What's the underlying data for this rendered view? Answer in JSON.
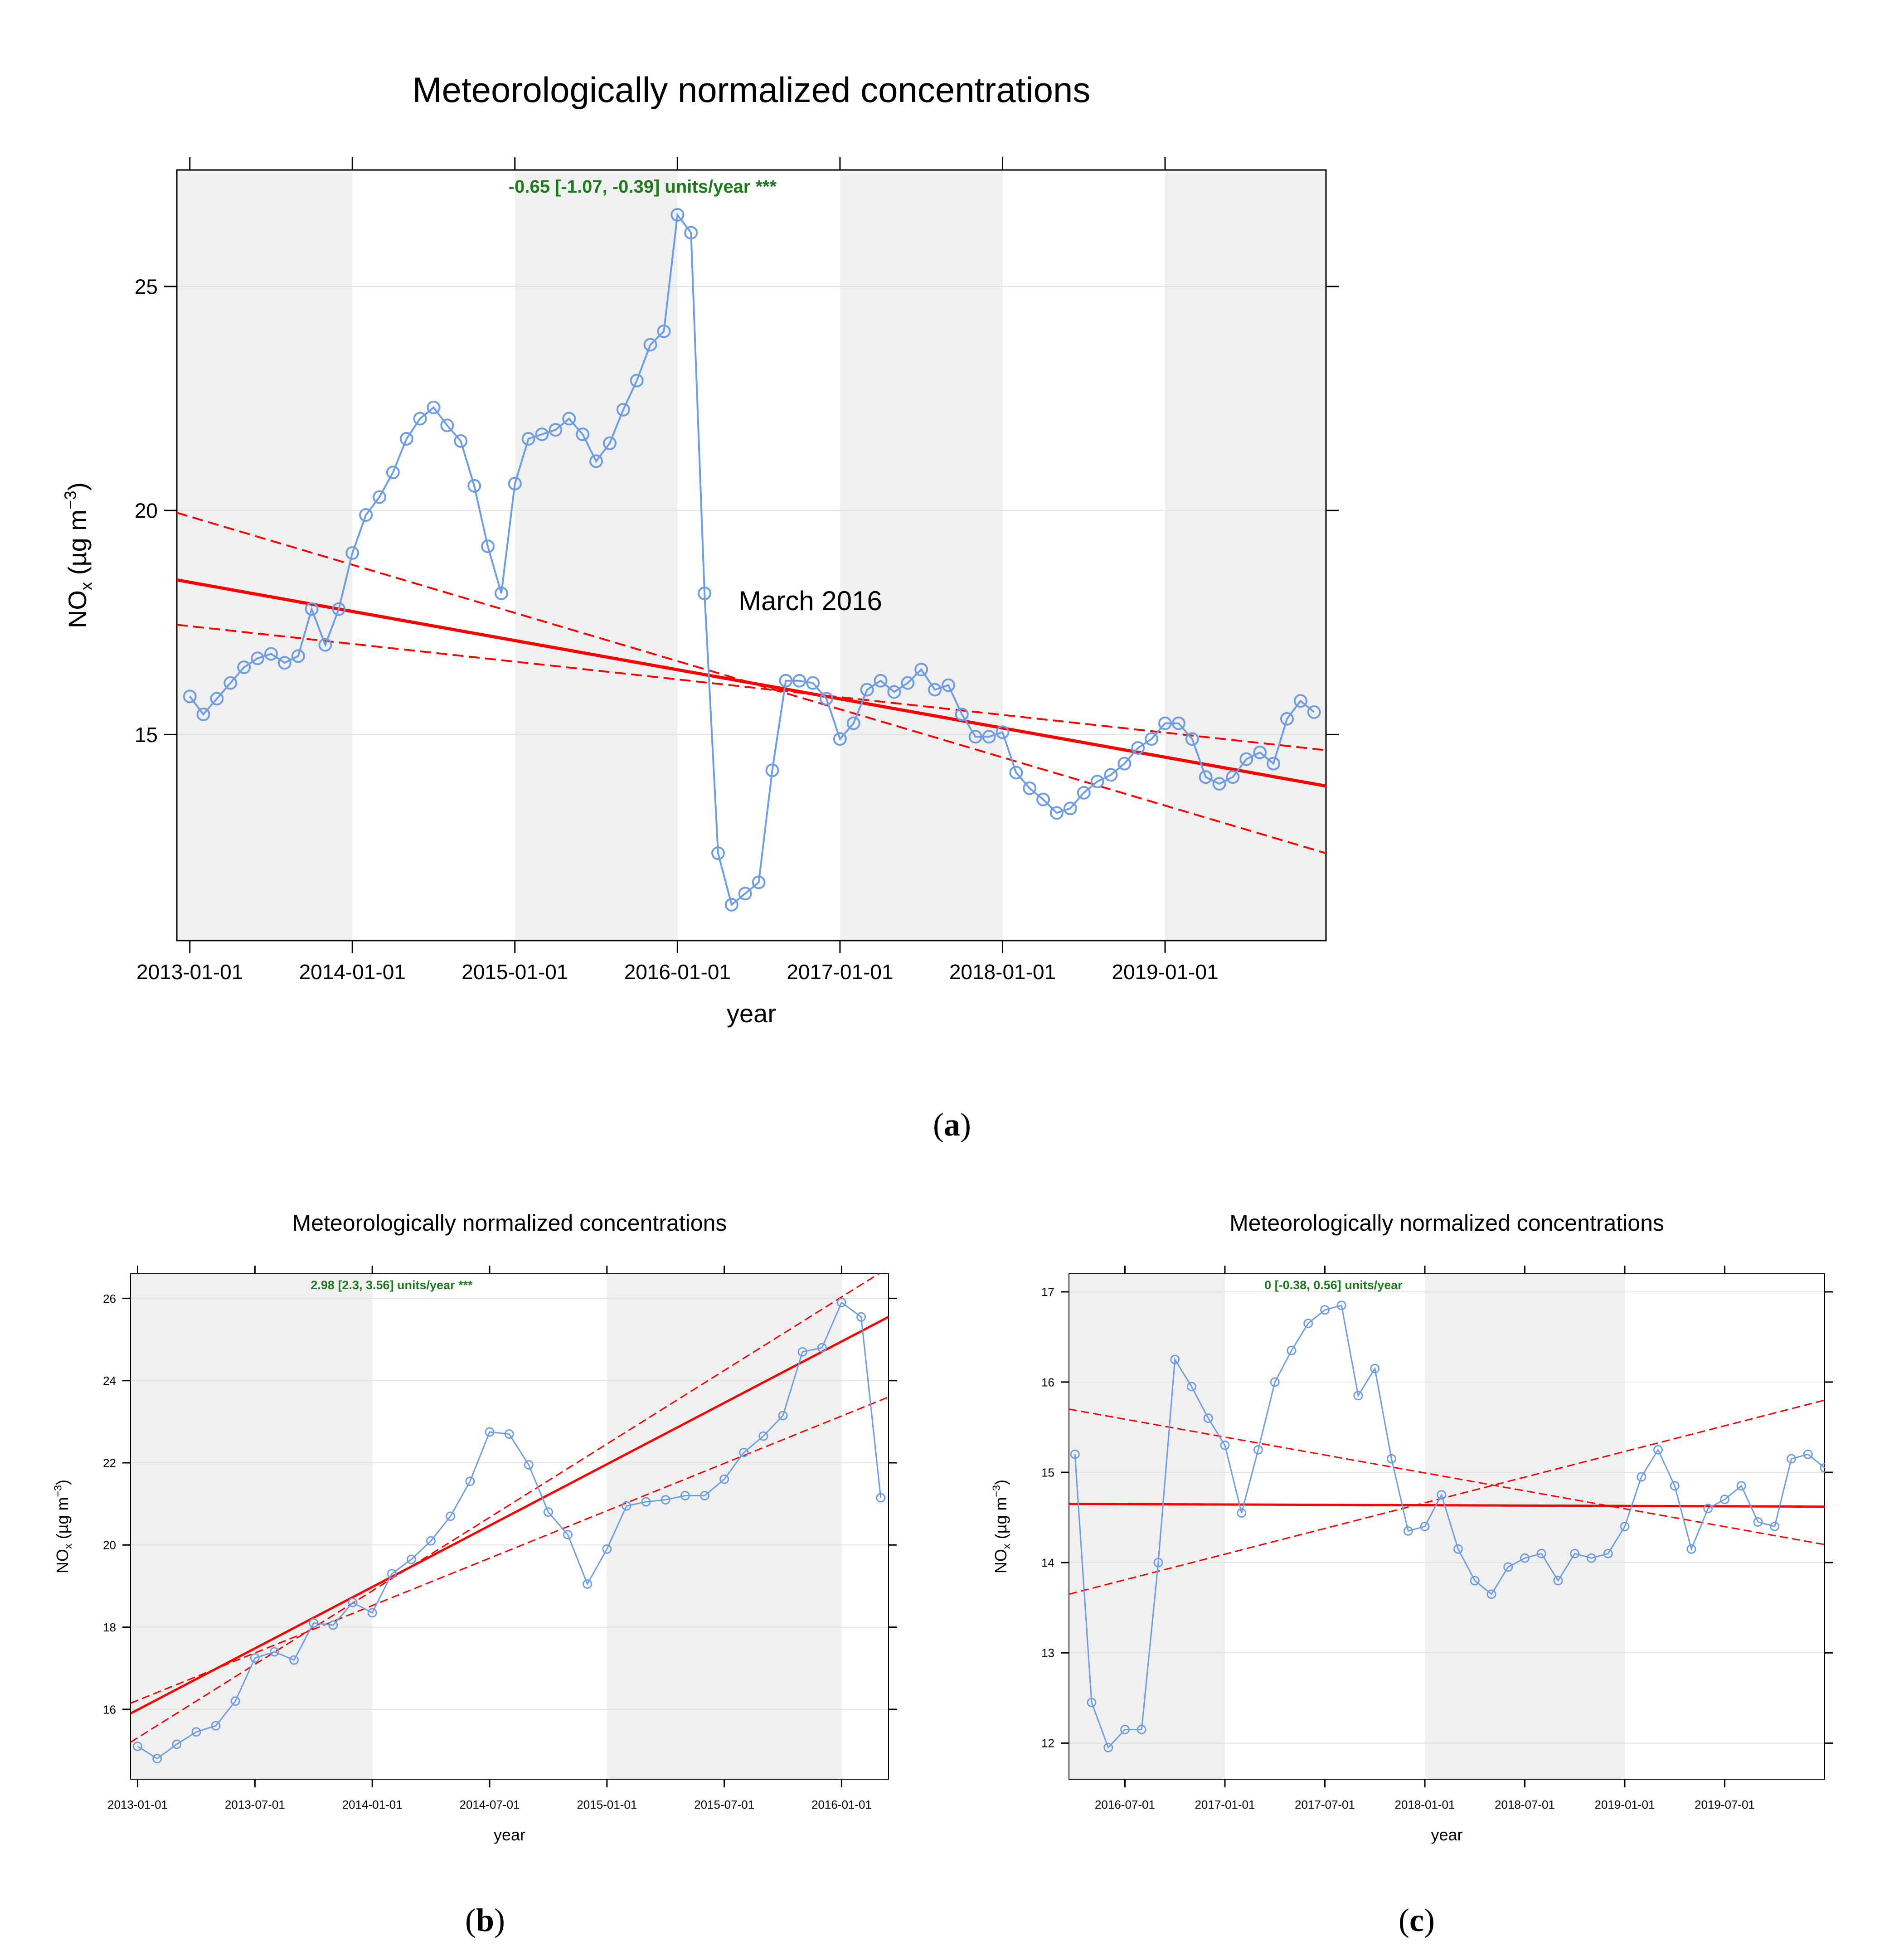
{
  "chart_data": [
    {
      "id": "a",
      "type": "line",
      "panel_label": "a",
      "title": "Meteorologically normalized concentrations",
      "xlabel": "year",
      "ylabel": "NO",
      "ylabel_sub": "x",
      "ylabel_unit": " (µg m",
      "ylabel_exp": "−3",
      "ylabel_close": ")",
      "trend_text": "-0.65 [-1.07, -0.39] units/year ***",
      "annotation": {
        "text": "March 2016",
        "x": 2016.25,
        "y": 18.0
      },
      "xlim": [
        2012.92,
        2019.99
      ],
      "ylim": [
        10.4,
        27.6
      ],
      "x_ticks": [
        2013,
        2014,
        2015,
        2016,
        2017,
        2018,
        2019
      ],
      "x_tick_labels": [
        "2013-01-01",
        "2014-01-01",
        "2015-01-01",
        "2016-01-01",
        "2017-01-01",
        "2018-01-01",
        "2019-01-01"
      ],
      "y_ticks": [
        15,
        20,
        25
      ],
      "y_tick_labels": [
        "15",
        "20",
        "25"
      ],
      "shaded_years": [
        [
          2012.92,
          2014
        ],
        [
          2015,
          2016
        ],
        [
          2017,
          2018
        ],
        [
          2019,
          2019.99
        ]
      ],
      "x_start": 2013.0,
      "x_step": 0.083333,
      "values": [
        15.85,
        15.45,
        15.8,
        16.15,
        16.5,
        16.7,
        16.8,
        16.6,
        16.75,
        17.8,
        17.0,
        17.8,
        19.05,
        19.9,
        20.3,
        20.85,
        21.6,
        22.05,
        22.3,
        21.9,
        21.55,
        20.55,
        19.2,
        18.15,
        20.6,
        21.6,
        21.7,
        21.8,
        22.05,
        21.7,
        21.1,
        21.5,
        22.25,
        22.9,
        23.7,
        24.0,
        26.6,
        26.2,
        18.15,
        12.35,
        11.2,
        11.45,
        11.7,
        14.2,
        16.2,
        16.2,
        16.15,
        15.8,
        14.9,
        15.25,
        16.0,
        16.2,
        15.95,
        16.15,
        16.45,
        16.0,
        16.1,
        15.45,
        14.95,
        14.95,
        15.05,
        14.15,
        13.8,
        13.55,
        13.25,
        13.35,
        13.7,
        13.95,
        14.1,
        14.35,
        14.7,
        14.9,
        15.25,
        15.25,
        14.9,
        14.05,
        13.9,
        14.05,
        14.45,
        14.6,
        14.35,
        15.35,
        15.75,
        15.5
      ],
      "trend_line": {
        "x": [
          2012.92,
          2019.99
        ],
        "y": [
          18.45,
          13.85
        ]
      },
      "ci_lower": {
        "x": [
          2012.92,
          2019.99
        ],
        "y": [
          19.95,
          12.35
        ]
      },
      "ci_upper": {
        "x": [
          2012.92,
          2019.99
        ],
        "y": [
          17.45,
          14.65
        ]
      }
    },
    {
      "id": "b",
      "type": "line",
      "panel_label": "b",
      "title": "Meteorologically normalized concentrations",
      "xlabel": "year",
      "ylabel": "NO",
      "ylabel_sub": "x",
      "ylabel_unit": " (µg m",
      "ylabel_exp": "−3",
      "ylabel_close": ")",
      "trend_text": "2.98 [2.3, 3.56] units/year ***",
      "xlim": [
        2012.97,
        2016.2
      ],
      "ylim": [
        14.3,
        26.6
      ],
      "x_ticks": [
        2013.0,
        2013.5,
        2014.0,
        2014.5,
        2015.0,
        2015.5,
        2016.0
      ],
      "x_tick_labels": [
        "2013-01-01",
        "2013-07-01",
        "2014-01-01",
        "2014-07-01",
        "2015-01-01",
        "2015-07-01",
        "2016-01-01"
      ],
      "y_ticks": [
        16,
        18,
        20,
        22,
        24,
        26
      ],
      "y_tick_labels": [
        "16",
        "18",
        "20",
        "22",
        "24",
        "26"
      ],
      "shaded_years": [
        [
          2012.97,
          2014
        ],
        [
          2015,
          2016
        ]
      ],
      "x_start": 2013.0,
      "x_step": 0.083333,
      "values": [
        15.1,
        14.8,
        15.15,
        15.45,
        15.6,
        16.2,
        17.25,
        17.4,
        17.2,
        18.1,
        18.05,
        18.6,
        18.35,
        19.3,
        19.65,
        20.1,
        20.7,
        21.55,
        22.75,
        22.7,
        21.95,
        20.8,
        20.25,
        19.05,
        19.9,
        20.95,
        21.05,
        21.1,
        21.2,
        21.2,
        21.6,
        22.25,
        22.65,
        23.15,
        24.7,
        24.8,
        25.9,
        25.55,
        21.15
      ],
      "trend_line": {
        "x": [
          2012.97,
          2016.2
        ],
        "y": [
          15.9,
          25.55
        ]
      },
      "ci_lower": {
        "x": [
          2012.97,
          2016.2
        ],
        "y": [
          15.2,
          26.75
        ]
      },
      "ci_upper": {
        "x": [
          2012.97,
          2016.2
        ],
        "y": [
          16.15,
          23.6
        ]
      }
    },
    {
      "id": "c",
      "type": "line",
      "panel_label": "c",
      "title": "Meteorologically normalized concentrations",
      "xlabel": "year",
      "ylabel": "NO",
      "ylabel_sub": "x",
      "ylabel_unit": " (µg m",
      "ylabel_exp": "−3",
      "ylabel_close": ")",
      "trend_text": "0 [-0.38, 0.56] units/year",
      "xlim": [
        2016.22,
        2020.0
      ],
      "ylim": [
        11.6,
        17.2
      ],
      "x_ticks": [
        2016.5,
        2017.0,
        2017.5,
        2018.0,
        2018.5,
        2019.0,
        2019.5
      ],
      "x_tick_labels": [
        "2016-07-01",
        "2017-01-01",
        "2017-07-01",
        "2018-01-01",
        "2018-07-01",
        "2019-01-01",
        "2019-07-01"
      ],
      "y_ticks": [
        12,
        13,
        14,
        15,
        16,
        17
      ],
      "y_tick_labels": [
        "12",
        "13",
        "14",
        "15",
        "16",
        "17"
      ],
      "shaded_years": [
        [
          2016.22,
          2017
        ],
        [
          2018,
          2019
        ]
      ],
      "x_start": 2016.25,
      "x_step": 0.083333,
      "values": [
        15.2,
        12.45,
        11.95,
        12.15,
        12.15,
        14.0,
        16.25,
        15.95,
        15.6,
        15.3,
        14.55,
        15.25,
        16.0,
        16.35,
        16.65,
        16.8,
        16.85,
        15.85,
        16.15,
        15.15,
        14.35,
        14.4,
        14.75,
        14.15,
        13.8,
        13.65,
        13.95,
        14.05,
        14.1,
        13.8,
        14.1,
        14.05,
        14.1,
        14.4,
        14.95,
        15.25,
        14.85,
        14.15,
        14.6,
        14.7,
        14.85,
        14.45,
        14.4,
        15.15,
        15.2,
        15.05
      ],
      "trend_line": {
        "x": [
          2016.22,
          2020.0
        ],
        "y": [
          14.65,
          14.62
        ]
      },
      "ci_lower": {
        "x": [
          2016.22,
          2020.0
        ],
        "y": [
          15.7,
          14.2
        ]
      },
      "ci_upper": {
        "x": [
          2016.22,
          2020.0
        ],
        "y": [
          13.65,
          15.8
        ]
      }
    }
  ],
  "colors": {
    "series": "#6f9de3",
    "trend": "#ff0000",
    "trend_text": "#1f7a1f",
    "shade": "#f0f0f0",
    "grid": "#e2e2e2"
  }
}
